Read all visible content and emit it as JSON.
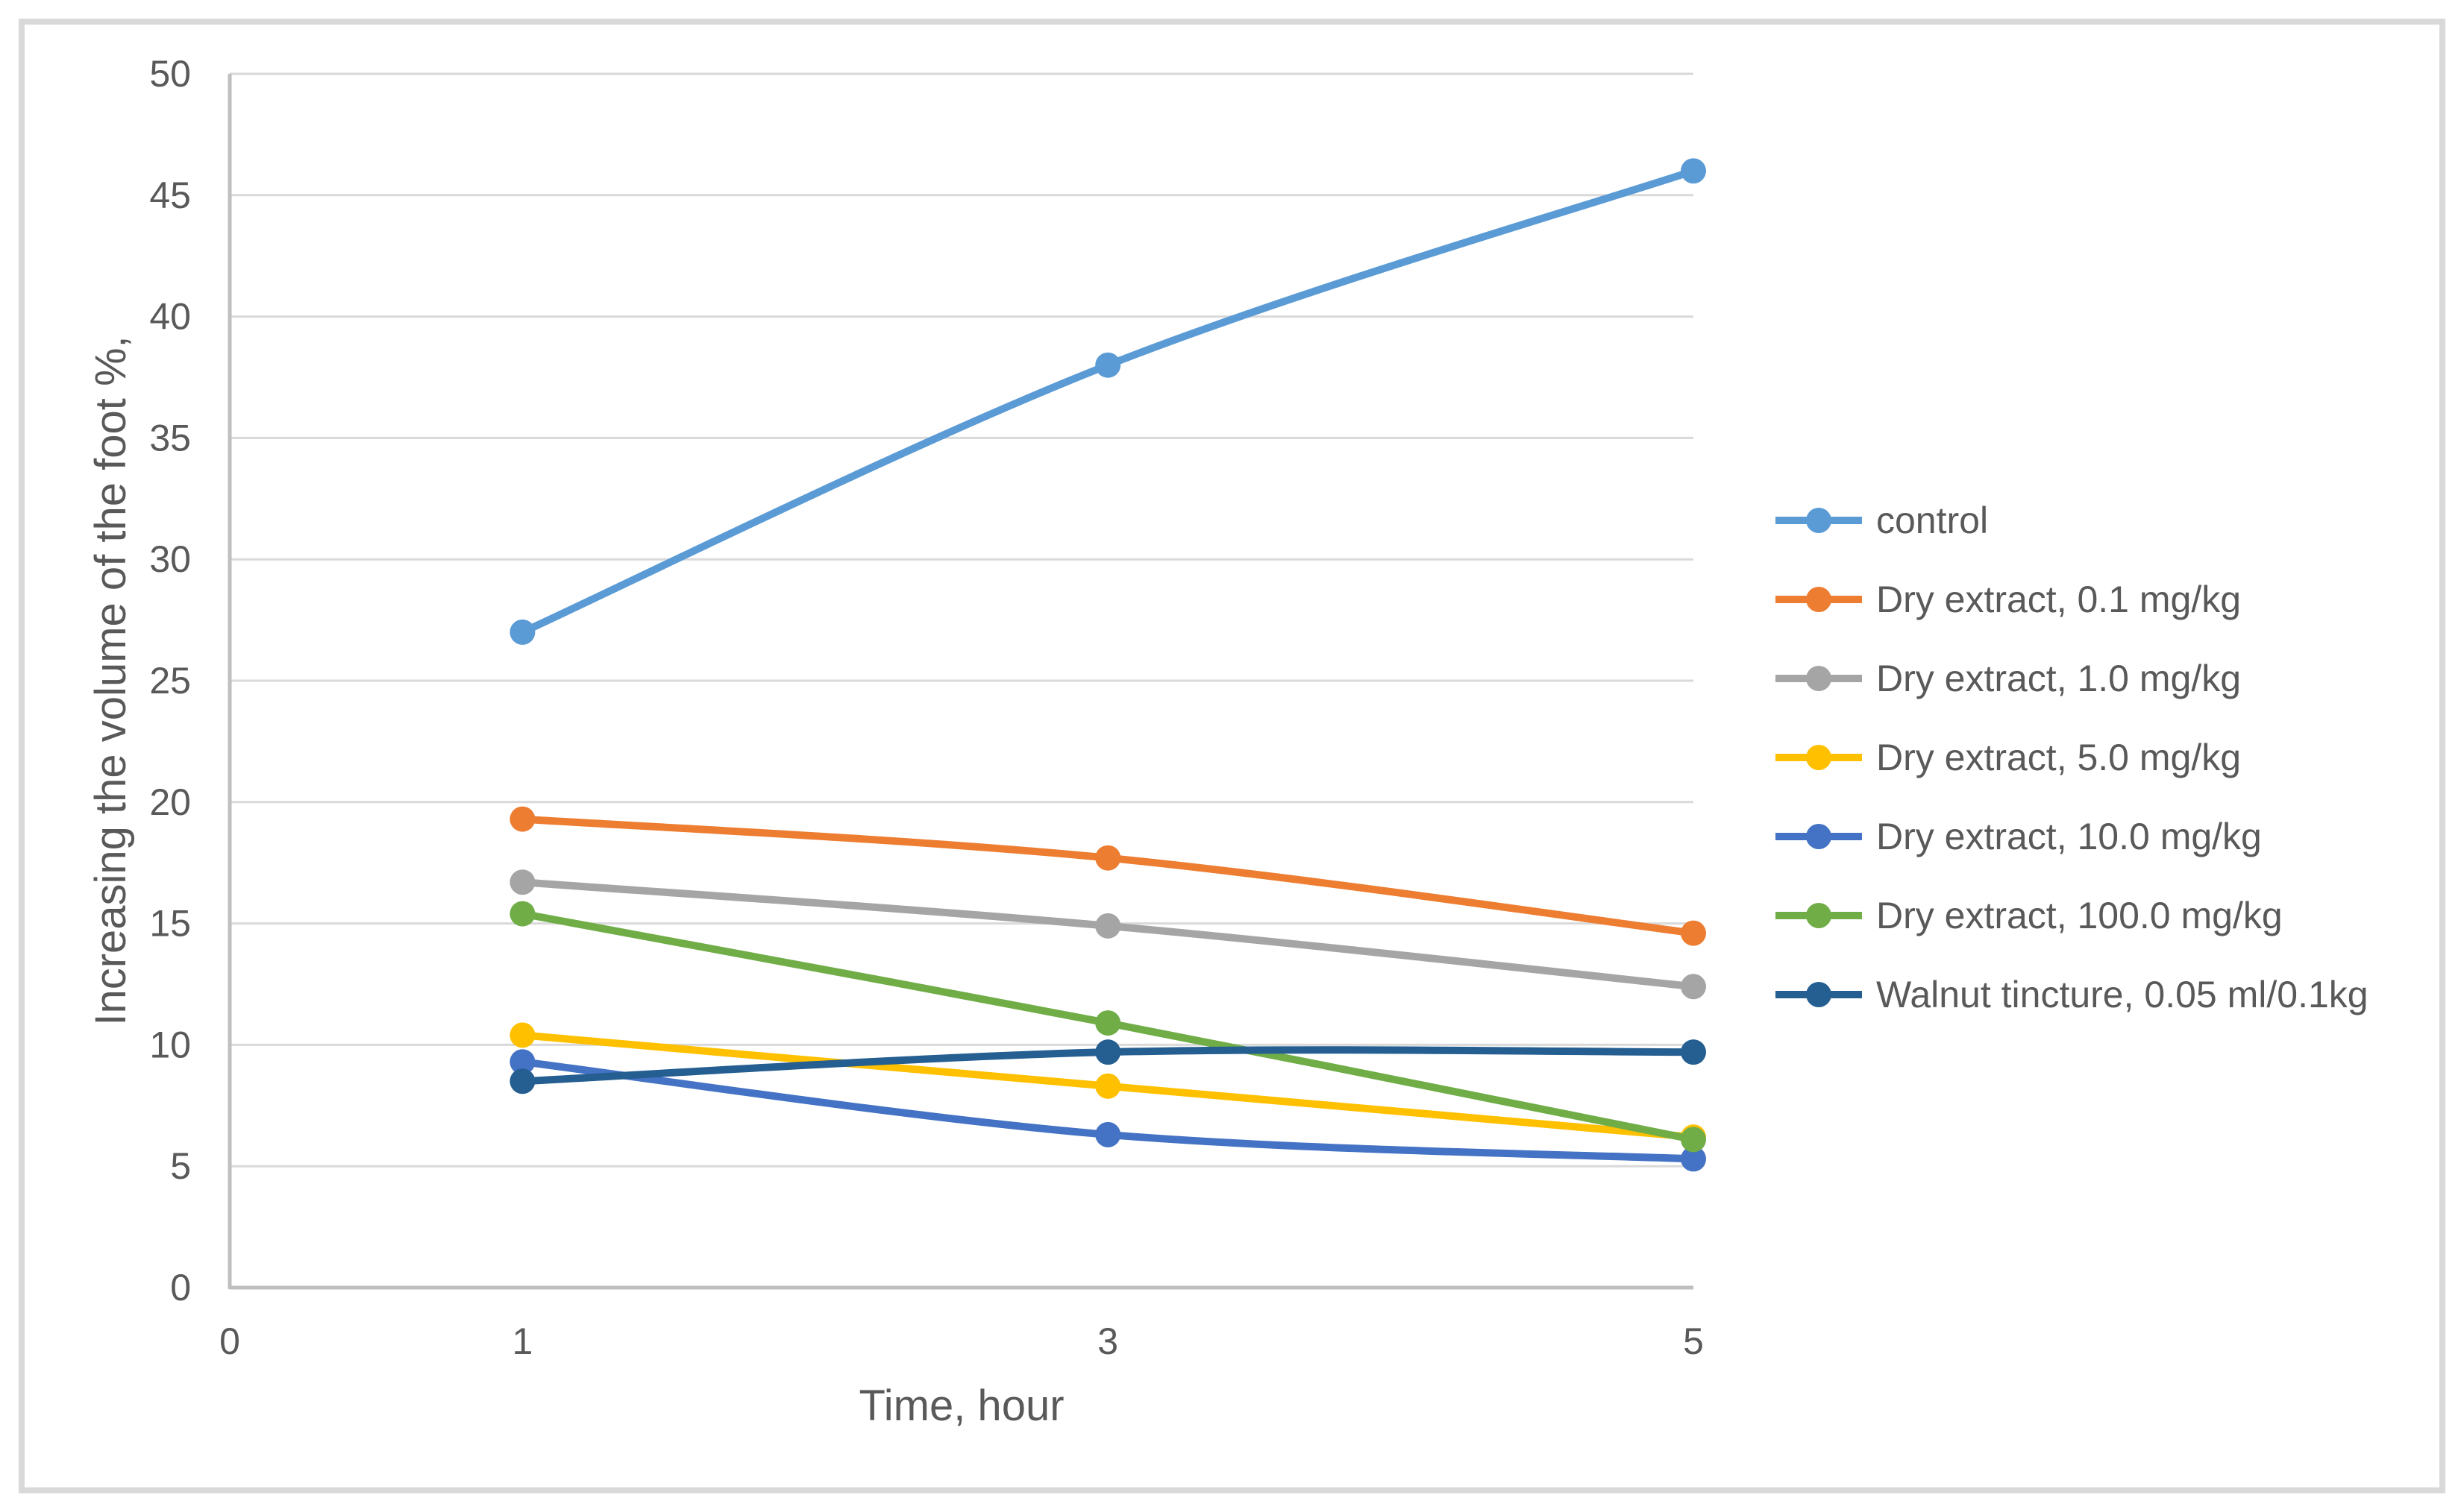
{
  "chart_data": {
    "type": "line",
    "title": "",
    "xlabel": "Time, hour",
    "ylabel": "Increasing the volume of the foot %,",
    "xlim": [
      0,
      5
    ],
    "ylim": [
      0,
      50
    ],
    "x_ticks": [
      0,
      1,
      3,
      5
    ],
    "y_ticks": [
      0,
      5,
      10,
      15,
      20,
      25,
      30,
      35,
      40,
      45,
      50
    ],
    "grid": "horizontal",
    "smooth_lines": true,
    "legend_position": "right",
    "x": [
      1,
      3,
      5
    ],
    "series": [
      {
        "name": "control",
        "color": "#5B9BD5",
        "values": [
          27,
          38,
          46
        ]
      },
      {
        "name": "Dry extract, 0.1 mg/kg",
        "color": "#ED7D31",
        "values": [
          19.3,
          17.7,
          14.6
        ]
      },
      {
        "name": "Dry extract, 1.0 mg/kg",
        "color": "#A5A5A5",
        "values": [
          16.7,
          14.9,
          12.4
        ]
      },
      {
        "name": "Dry extract, 5.0 mg/kg",
        "color": "#FFC000",
        "values": [
          10.4,
          8.3,
          6.2
        ]
      },
      {
        "name": "Dry extract, 10.0 mg/kg",
        "color": "#4472C4",
        "values": [
          9.3,
          6.3,
          5.3
        ]
      },
      {
        "name": "Dry extract, 100.0 mg/kg",
        "color": "#70AD47",
        "values": [
          15.4,
          10.9,
          6.1
        ]
      },
      {
        "name": "Walnut tincture, 0.05 ml/0.1kg",
        "color": "#255E91",
        "values": [
          8.5,
          9.7,
          9.7
        ]
      }
    ]
  },
  "styles": {
    "background": "#FFFFFF",
    "axis_text_color": "#595959",
    "gridline_color": "#D9D9D9",
    "axis_line_color": "#BFBFBF",
    "frame_border_color": "#D9D9D9"
  }
}
